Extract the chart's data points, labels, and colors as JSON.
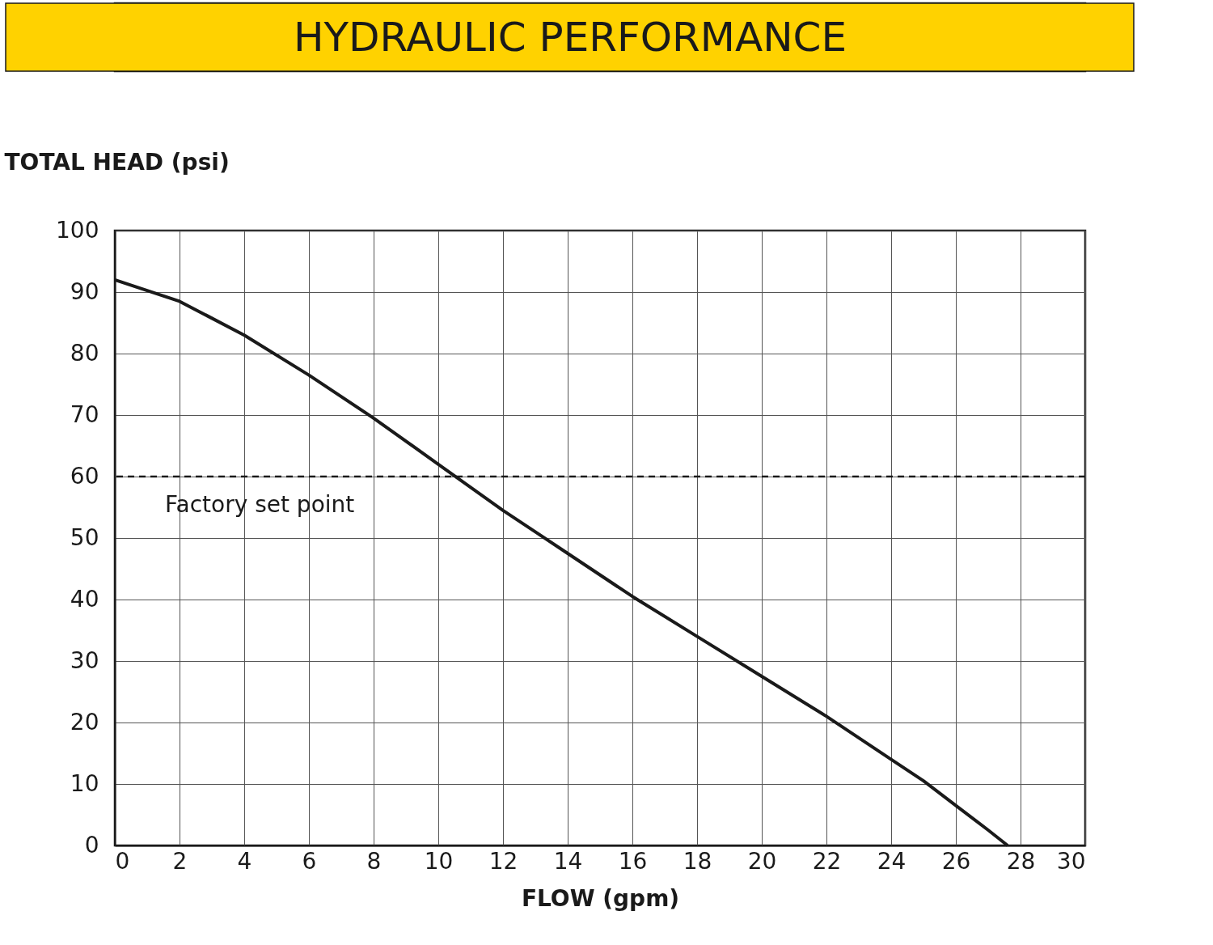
{
  "chart_data": {
    "type": "line",
    "title": "HYDRAULIC PERFORMANCE",
    "xlabel": "FLOW (gpm)",
    "ylabel": "TOTAL HEAD (psi)",
    "x": [
      0,
      2,
      4,
      6,
      8,
      10,
      12,
      13,
      14,
      16,
      18,
      20,
      22,
      24,
      25,
      26,
      27,
      27.6
    ],
    "series": [
      {
        "color": "#1a1a1a",
        "values": [
          92,
          88.5,
          83,
          76.5,
          69.5,
          62,
          54.5,
          51,
          47.5,
          40.5,
          34,
          27.5,
          21,
          14,
          10.5,
          6.5,
          2.5,
          0
        ]
      }
    ],
    "xlim": [
      0,
      30
    ],
    "xticks": [
      0,
      2,
      4,
      6,
      8,
      10,
      12,
      14,
      16,
      18,
      20,
      22,
      24,
      26,
      28,
      30
    ],
    "ylim": [
      0,
      100
    ],
    "yticks": [
      0,
      10,
      20,
      30,
      40,
      50,
      60,
      70,
      80,
      90,
      100
    ],
    "ref_lines": [
      {
        "axis": "y",
        "value": 60,
        "label": "Factory set point",
        "color": "#1a1a1a",
        "line_style": "dashed"
      }
    ],
    "grid": true,
    "marker": "none",
    "line_style": "solid"
  }
}
